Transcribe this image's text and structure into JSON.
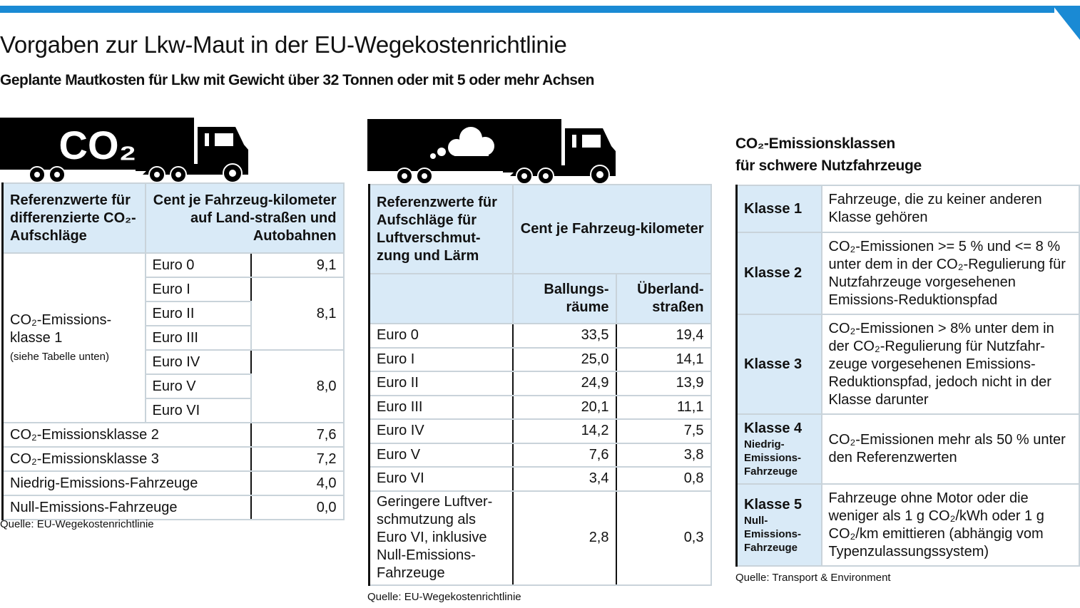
{
  "header": {
    "title": "Vorgaben zur Lkw-Maut in der EU-Wegekostenrichtlinie",
    "subtitle": "Geplante Mautkosten für Lkw mit Gewicht über 32 Tonnen oder mit 5 oder mehr Achsen",
    "accent": "#1a8ad4",
    "header_bg": "#d9eaf7"
  },
  "truck1": {
    "label": "CO₂"
  },
  "table1": {
    "head_left": "Referenzwerte für differenzierte CO₂-Aufschläge",
    "head_right": "Cent je Fahrzeug-kilometer auf Land-straßen und Autobahnen",
    "group_label": "CO₂-Emissions-klasse 1",
    "group_note": "(siehe Tabelle unten)",
    "euro": [
      "Euro 0",
      "Euro I",
      "Euro II",
      "Euro III",
      "Euro IV",
      "Euro V",
      "Euro VI"
    ],
    "values": [
      "9,1",
      "8,1",
      "8,0"
    ],
    "rows": [
      {
        "label": "CO₂-Emissionsklasse 2",
        "value": "7,6"
      },
      {
        "label": "CO₂-Emissionsklasse 3",
        "value": "7,2"
      },
      {
        "label": "Niedrig-Emissions-Fahrzeuge",
        "value": "4,0"
      },
      {
        "label": "Null-Emissions-Fahrzeuge",
        "value": "0,0"
      }
    ],
    "source": "Quelle: EU-Wegekostenrichtlinie"
  },
  "table2": {
    "head_left": "Referenzwerte für Aufschläge für Luftverschmut-zung und Lärm",
    "head_right": "Cent je Fahrzeug-kilometer",
    "col1": "Ballungs-räume",
    "col2": "Überland-straßen",
    "rows": [
      {
        "label": "Euro 0",
        "a": "33,5",
        "b": "19,4"
      },
      {
        "label": "Euro I",
        "a": "25,0",
        "b": "14,1"
      },
      {
        "label": "Euro II",
        "a": "24,9",
        "b": "13,9"
      },
      {
        "label": "Euro III",
        "a": "20,1",
        "b": "11,1"
      },
      {
        "label": "Euro IV",
        "a": "14,2",
        "b": "7,5"
      },
      {
        "label": "Euro V",
        "a": "7,6",
        "b": "3,8"
      },
      {
        "label": "Euro VI",
        "a": "3,4",
        "b": "0,8"
      },
      {
        "label": "Geringere Luftver-schmutzung als Euro VI, inklusive Null-Emissions-Fahrzeuge",
        "a": "2,8",
        "b": "0,3"
      }
    ],
    "source": "Quelle: EU-Wegekostenrichtlinie"
  },
  "table3": {
    "title1": "CO₂-Emissionsklassen",
    "title2": "für schwere Nutzfahrzeuge",
    "rows": [
      {
        "klasse": "Klasse 1",
        "sub": "",
        "text": "Fahrzeuge, die zu keiner anderen Klasse gehören"
      },
      {
        "klasse": "Klasse 2",
        "sub": "",
        "text": "CO₂-Emissionen >= 5 % und <= 8 % unter dem in der CO₂-Regulierung für Nutzfahrzeuge vorgesehenen Emissions-Reduktionspfad"
      },
      {
        "klasse": "Klasse 3",
        "sub": "",
        "text": "CO₂-Emissionen > 8% unter dem in der CO₂-Regulierung für Nutzfahr-zeuge vorgesehenen Emissions-Reduktionspfad, jedoch nicht in der Klasse darunter"
      },
      {
        "klasse": "Klasse 4",
        "sub": "Niedrig-Emissions-Fahrzeuge",
        "text": "CO₂-Emissionen mehr als 50 % unter den Referenzwerten"
      },
      {
        "klasse": "Klasse 5",
        "sub": "Null-Emissions-Fahrzeuge",
        "text": "Fahrzeuge ohne Motor oder die weniger als 1 g CO₂/kWh oder 1 g CO₂/km emittieren (abhängig vom Typenzulassungssystem)"
      }
    ],
    "source": "Quelle: Transport & Environment"
  }
}
